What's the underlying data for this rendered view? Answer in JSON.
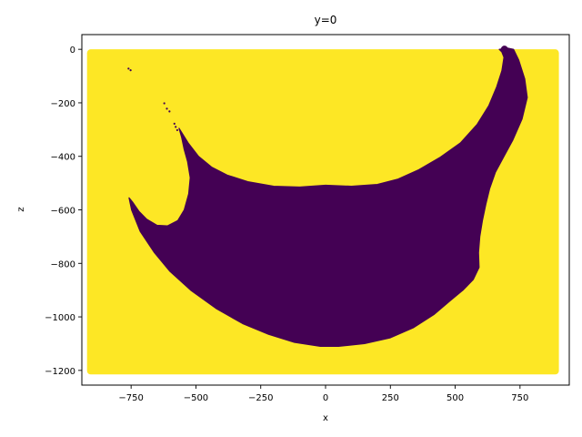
{
  "chart_data": {
    "type": "scatter",
    "title": "y=0",
    "xlabel": "x",
    "ylabel": "z",
    "xlim": [
      -940,
      940
    ],
    "ylim": [
      -1255,
      55
    ],
    "x_ticks": [
      -750,
      -500,
      -250,
      0,
      250,
      500,
      750
    ],
    "y_ticks": [
      0,
      -200,
      -400,
      -600,
      -800,
      -1000,
      -1200
    ],
    "x_tick_labels": [
      "−750",
      "−500",
      "−250",
      "0",
      "250",
      "500",
      "750"
    ],
    "y_tick_labels": [
      "0",
      "−200",
      "−400",
      "−600",
      "−800",
      "−1000",
      "−1200"
    ],
    "grid": false,
    "legend": "none",
    "series": [
      {
        "color": "#fde725",
        "domain": {
          "x_range": [
            -920,
            900
          ],
          "z_range": [
            -1215,
            0
          ]
        }
      },
      {
        "color": "#440154",
        "outline": [
          [
            670,
            0
          ],
          [
            700,
            5
          ],
          [
            725,
            0
          ],
          [
            745,
            -40
          ],
          [
            768,
            -110
          ],
          [
            778,
            -180
          ],
          [
            758,
            -260
          ],
          [
            722,
            -340
          ],
          [
            688,
            -400
          ],
          [
            655,
            -460
          ],
          [
            633,
            -520
          ],
          [
            618,
            -580
          ],
          [
            605,
            -640
          ],
          [
            595,
            -700
          ],
          [
            590,
            -760
          ],
          [
            592,
            -815
          ],
          [
            570,
            -860
          ],
          [
            530,
            -900
          ],
          [
            480,
            -940
          ],
          [
            420,
            -990
          ],
          [
            340,
            -1040
          ],
          [
            250,
            -1078
          ],
          [
            150,
            -1100
          ],
          [
            50,
            -1110
          ],
          [
            -20,
            -1110
          ],
          [
            -120,
            -1095
          ],
          [
            -220,
            -1065
          ],
          [
            -320,
            -1025
          ],
          [
            -420,
            -970
          ],
          [
            -520,
            -900
          ],
          [
            -600,
            -830
          ],
          [
            -660,
            -760
          ],
          [
            -715,
            -680
          ],
          [
            -748,
            -600
          ],
          [
            -758,
            -555
          ],
          [
            -745,
            -570
          ],
          [
            -720,
            -605
          ],
          [
            -690,
            -635
          ],
          [
            -650,
            -658
          ],
          [
            -610,
            -660
          ],
          [
            -570,
            -640
          ],
          [
            -545,
            -600
          ],
          [
            -528,
            -540
          ],
          [
            -522,
            -480
          ],
          [
            -532,
            -420
          ],
          [
            -545,
            -375
          ],
          [
            -555,
            -330
          ],
          [
            -565,
            -295
          ],
          [
            -530,
            -350
          ],
          [
            -490,
            -400
          ],
          [
            -440,
            -440
          ],
          [
            -380,
            -470
          ],
          [
            -300,
            -495
          ],
          [
            -200,
            -512
          ],
          [
            -100,
            -515
          ],
          [
            0,
            -508
          ],
          [
            100,
            -512
          ],
          [
            200,
            -505
          ],
          [
            280,
            -485
          ],
          [
            360,
            -450
          ],
          [
            440,
            -405
          ],
          [
            520,
            -350
          ],
          [
            585,
            -280
          ],
          [
            630,
            -210
          ],
          [
            660,
            -140
          ],
          [
            680,
            -80
          ],
          [
            688,
            -30
          ],
          [
            680,
            -10
          ],
          [
            670,
            0
          ]
        ],
        "specks": [
          [
            -760,
            -72
          ],
          [
            -752,
            -78
          ],
          [
            -622,
            -202
          ],
          [
            -612,
            -222
          ],
          [
            -602,
            -232
          ],
          [
            -583,
            -278
          ],
          [
            -578,
            -290
          ],
          [
            -572,
            -302
          ]
        ]
      }
    ]
  }
}
